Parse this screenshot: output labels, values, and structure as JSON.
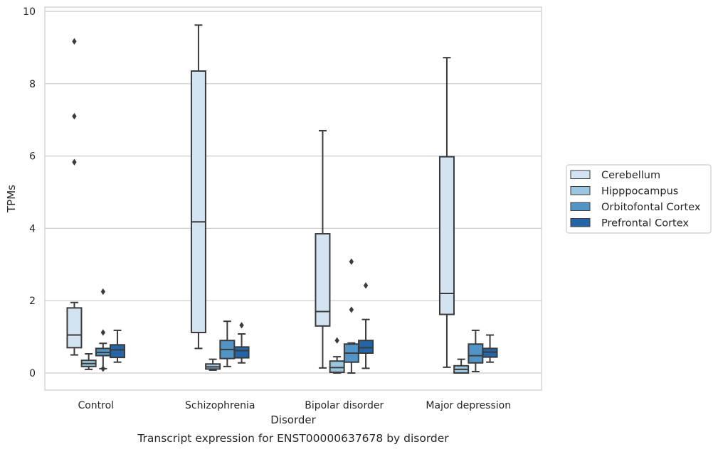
{
  "chart_data": {
    "type": "box",
    "xlabel": "Disorder",
    "ylabel": "TPMs",
    "caption": "Transcript expression for ENST00000637678 by disorder",
    "ylim": [
      -0.45,
      10.1
    ],
    "y_ticks": [
      0,
      2,
      4,
      6,
      8,
      10
    ],
    "grid": true,
    "legend_position": "right",
    "categories": [
      "Control",
      "Schizophrenia",
      "Bipolar disorder",
      "Major depression"
    ],
    "series": [
      {
        "name": "Cerebellum",
        "color": "#d3e3f2",
        "boxes": [
          {
            "whisker_low": 0.5,
            "q1": 0.7,
            "median": 1.05,
            "q3": 1.8,
            "whisker_high": 1.95,
            "outliers": [
              5.83,
              7.1,
              9.17
            ]
          },
          {
            "whisker_low": 0.68,
            "q1": 1.12,
            "median": 4.18,
            "q3": 8.35,
            "whisker_high": 9.62,
            "outliers": []
          },
          {
            "whisker_low": 0.14,
            "q1": 1.3,
            "median": 1.7,
            "q3": 3.85,
            "whisker_high": 6.7,
            "outliers": []
          },
          {
            "whisker_low": 0.16,
            "q1": 1.62,
            "median": 2.2,
            "q3": 5.98,
            "whisker_high": 8.72,
            "outliers": []
          }
        ]
      },
      {
        "name": "Hipppocampus",
        "color": "#9ac6df",
        "boxes": [
          {
            "whisker_low": 0.1,
            "q1": 0.18,
            "median": 0.26,
            "q3": 0.35,
            "whisker_high": 0.53,
            "outliers": []
          },
          {
            "whisker_low": 0.08,
            "q1": 0.11,
            "median": 0.17,
            "q3": 0.25,
            "whisker_high": 0.38,
            "outliers": []
          },
          {
            "whisker_low": 0.0,
            "q1": 0.02,
            "median": 0.15,
            "q3": 0.33,
            "whisker_high": 0.45,
            "outliers": [
              0.9
            ]
          },
          {
            "whisker_low": 0.0,
            "q1": 0.0,
            "median": 0.1,
            "q3": 0.2,
            "whisker_high": 0.38,
            "outliers": []
          }
        ]
      },
      {
        "name": "Orbitofontal Cortex",
        "color": "#5294c5",
        "boxes": [
          {
            "whisker_low": 0.12,
            "q1": 0.48,
            "median": 0.57,
            "q3": 0.68,
            "whisker_high": 0.82,
            "outliers": [
              0.12,
              1.12,
              2.25
            ]
          },
          {
            "whisker_low": 0.18,
            "q1": 0.4,
            "median": 0.65,
            "q3": 0.9,
            "whisker_high": 1.43,
            "outliers": []
          },
          {
            "whisker_low": 0.0,
            "q1": 0.3,
            "median": 0.55,
            "q3": 0.8,
            "whisker_high": 0.83,
            "outliers": [
              1.75,
              3.08
            ]
          },
          {
            "whisker_low": 0.04,
            "q1": 0.28,
            "median": 0.48,
            "q3": 0.8,
            "whisker_high": 1.18,
            "outliers": []
          }
        ]
      },
      {
        "name": "Prefrontal Cortex",
        "color": "#2465a8",
        "boxes": [
          {
            "whisker_low": 0.3,
            "q1": 0.43,
            "median": 0.64,
            "q3": 0.78,
            "whisker_high": 1.18,
            "outliers": []
          },
          {
            "whisker_low": 0.28,
            "q1": 0.42,
            "median": 0.62,
            "q3": 0.72,
            "whisker_high": 1.08,
            "outliers": [
              1.32
            ]
          },
          {
            "whisker_low": 0.13,
            "q1": 0.55,
            "median": 0.7,
            "q3": 0.9,
            "whisker_high": 1.48,
            "outliers": [
              2.42
            ]
          },
          {
            "whisker_low": 0.3,
            "q1": 0.44,
            "median": 0.58,
            "q3": 0.68,
            "whisker_high": 1.05,
            "outliers": []
          }
        ]
      }
    ]
  }
}
